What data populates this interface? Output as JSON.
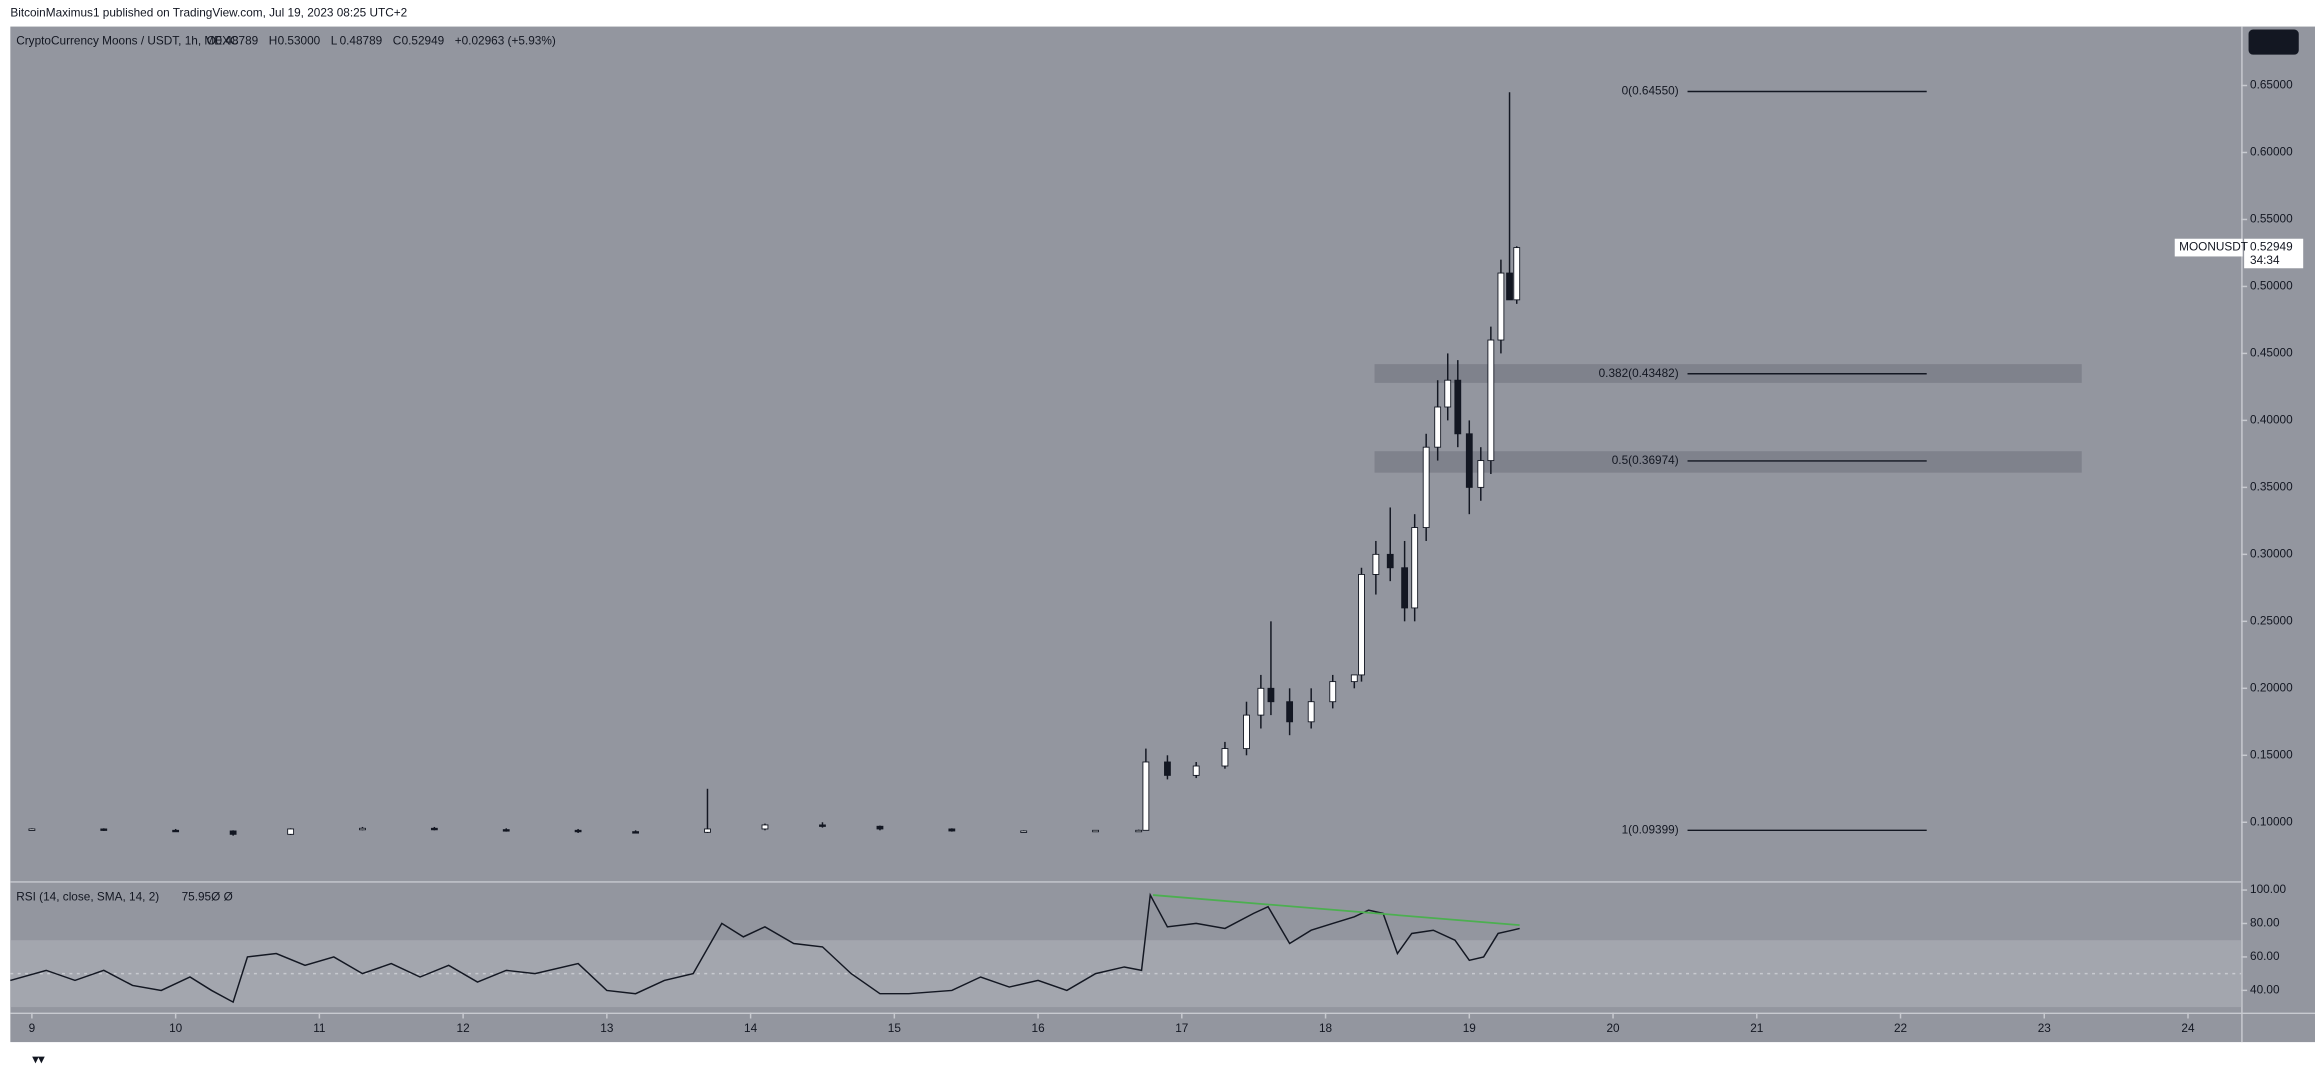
{
  "chart_data": [
    {
      "type": "candlestick",
      "attribution": "BitcoinMaximus1 published on TradingView.com, Jul 19, 2023 08:25 UTC+2",
      "title": "CryptoCurrency Moons / USDT, 1h, MEXC",
      "ohlc_legend": [
        "O",
        "0.48789",
        "H",
        "0.53000",
        "L",
        "0.48789",
        "C",
        "0.52949",
        "+0.02963 (+5.93%)"
      ],
      "price_tag": {
        "symbol": "MOONUSDT",
        "price": "0.52949",
        "countdown": "34:34"
      },
      "xlim": [
        8.85,
        24.37
      ],
      "ylim": [
        0.056,
        0.694
      ],
      "yticks": [
        {
          "value": 0.1,
          "label": "0.10000"
        },
        {
          "value": 0.15,
          "label": "0.15000"
        },
        {
          "value": 0.2,
          "label": "0.20000"
        },
        {
          "value": 0.25,
          "label": "0.25000"
        },
        {
          "value": 0.3,
          "label": "0.30000"
        },
        {
          "value": 0.35,
          "label": "0.35000"
        },
        {
          "value": 0.4,
          "label": "0.40000"
        },
        {
          "value": 0.45,
          "label": "0.45000"
        },
        {
          "value": 0.5,
          "label": "0.50000"
        },
        {
          "value": 0.55,
          "label": "0.55000"
        },
        {
          "value": 0.6,
          "label": "0.60000"
        },
        {
          "value": 0.65,
          "label": "0.65000"
        }
      ],
      "x": [
        9.0,
        9.5,
        10.0,
        10.4,
        10.8,
        11.3,
        11.8,
        12.3,
        12.8,
        13.2,
        13.7,
        14.1,
        14.5,
        14.9,
        15.4,
        15.9,
        16.4,
        16.7,
        16.75,
        16.9,
        17.1,
        17.3,
        17.45,
        17.55,
        17.62,
        17.75,
        17.9,
        18.05,
        18.2,
        18.25,
        18.35,
        18.45,
        18.55,
        18.62,
        18.7,
        18.78,
        18.85,
        18.92,
        19.0,
        19.08,
        19.15,
        19.22,
        19.28,
        19.33
      ],
      "open": [
        0.0945,
        0.095,
        0.094,
        0.0935,
        0.091,
        0.095,
        0.0955,
        0.0945,
        0.094,
        0.093,
        0.0925,
        0.095,
        0.098,
        0.097,
        0.095,
        0.0935,
        0.0935,
        0.094,
        0.094,
        0.145,
        0.135,
        0.142,
        0.155,
        0.18,
        0.2,
        0.19,
        0.175,
        0.19,
        0.205,
        0.21,
        0.285,
        0.3,
        0.29,
        0.26,
        0.32,
        0.38,
        0.41,
        0.43,
        0.39,
        0.35,
        0.37,
        0.46,
        0.51,
        0.49
      ],
      "high": [
        0.0955,
        0.0955,
        0.095,
        0.094,
        0.0955,
        0.0965,
        0.0965,
        0.0955,
        0.095,
        0.094,
        0.125,
        0.099,
        0.1,
        0.0975,
        0.0955,
        0.094,
        0.094,
        0.0945,
        0.155,
        0.15,
        0.145,
        0.16,
        0.19,
        0.21,
        0.25,
        0.2,
        0.2,
        0.21,
        0.21,
        0.29,
        0.31,
        0.335,
        0.31,
        0.33,
        0.39,
        0.43,
        0.45,
        0.445,
        0.4,
        0.38,
        0.47,
        0.52,
        0.645,
        0.53
      ],
      "low": [
        0.094,
        0.0935,
        0.093,
        0.09,
        0.0905,
        0.094,
        0.094,
        0.093,
        0.092,
        0.092,
        0.092,
        0.094,
        0.096,
        0.094,
        0.093,
        0.093,
        0.093,
        0.093,
        0.094,
        0.132,
        0.133,
        0.14,
        0.15,
        0.17,
        0.18,
        0.165,
        0.17,
        0.185,
        0.2,
        0.205,
        0.27,
        0.28,
        0.25,
        0.25,
        0.31,
        0.37,
        0.4,
        0.38,
        0.33,
        0.34,
        0.36,
        0.45,
        0.49,
        0.487
      ],
      "close": [
        0.095,
        0.094,
        0.0935,
        0.091,
        0.095,
        0.0955,
        0.0945,
        0.094,
        0.093,
        0.0925,
        0.095,
        0.098,
        0.097,
        0.095,
        0.0935,
        0.0935,
        0.094,
        0.094,
        0.145,
        0.135,
        0.142,
        0.155,
        0.18,
        0.2,
        0.19,
        0.175,
        0.19,
        0.205,
        0.21,
        0.285,
        0.3,
        0.29,
        0.26,
        0.32,
        0.38,
        0.41,
        0.43,
        0.39,
        0.35,
        0.37,
        0.46,
        0.51,
        0.49,
        0.529
      ],
      "fib_levels": [
        {
          "label": "0(0.64550)",
          "value": 0.6455
        },
        {
          "label": "0.382(0.43482)",
          "value": 0.43482
        },
        {
          "label": "0.5(0.36974)",
          "value": 0.36974
        },
        {
          "label": "1(0.09399)",
          "value": 0.09399
        }
      ],
      "zones": [
        [
          0.428,
          0.442
        ],
        [
          0.361,
          0.377
        ]
      ]
    },
    {
      "type": "line",
      "title": "RSI (14, close, SMA, 14, 2)",
      "last_value": "75.95",
      "extra": "Ø Ø",
      "xlim": [
        8.85,
        24.37
      ],
      "xticks": [
        9,
        10,
        11,
        12,
        13,
        14,
        15,
        16,
        17,
        18,
        19,
        20,
        21,
        22,
        23,
        24
      ],
      "ylim": [
        27.6,
        104.4
      ],
      "yticks": [
        {
          "value": 40,
          "label": "40.00"
        },
        {
          "value": 60,
          "label": "60.00"
        },
        {
          "value": 80,
          "label": "80.00"
        },
        {
          "value": 100,
          "label": "100.00"
        }
      ],
      "band": [
        30,
        70
      ],
      "midline": 50,
      "color": "#131722",
      "x": [
        8.85,
        9.1,
        9.3,
        9.5,
        9.7,
        9.9,
        10.1,
        10.25,
        10.4,
        10.5,
        10.7,
        10.9,
        11.1,
        11.3,
        11.5,
        11.7,
        11.9,
        12.1,
        12.3,
        12.5,
        12.8,
        13.0,
        13.2,
        13.4,
        13.6,
        13.8,
        13.95,
        14.1,
        14.3,
        14.5,
        14.7,
        14.9,
        15.1,
        15.4,
        15.6,
        15.8,
        16.0,
        16.2,
        16.4,
        16.6,
        16.72,
        16.78,
        16.9,
        17.1,
        17.3,
        17.5,
        17.6,
        17.75,
        17.9,
        18.05,
        18.2,
        18.3,
        18.4,
        18.5,
        18.6,
        18.75,
        18.9,
        19.0,
        19.1,
        19.2,
        19.3,
        19.35
      ],
      "values": [
        46,
        52,
        46,
        52,
        43,
        40,
        48,
        40,
        33,
        60,
        62,
        55,
        60,
        50,
        56,
        48,
        55,
        45,
        52,
        50,
        56,
        40,
        38,
        46,
        50,
        80,
        72,
        78,
        68,
        66,
        50,
        38,
        38,
        40,
        48,
        42,
        46,
        40,
        50,
        54,
        52,
        97,
        78,
        80,
        77,
        86,
        90,
        68,
        76,
        80,
        84,
        88,
        86,
        62,
        74,
        76,
        70,
        58,
        60,
        74,
        76,
        77
      ],
      "trendline": {
        "color": "#4caf50",
        "x": [
          16.8,
          19.35
        ],
        "values": [
          97,
          79
        ]
      }
    }
  ]
}
